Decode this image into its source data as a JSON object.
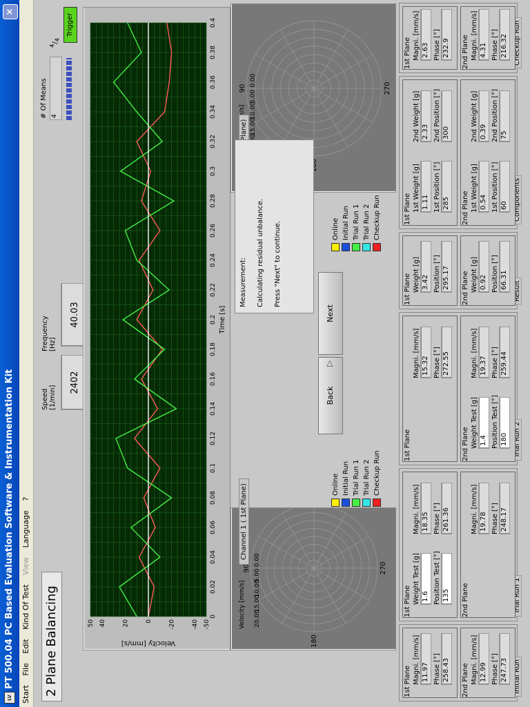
{
  "window": {
    "title": "PT 500.04 PC Based Evaluation Software & Instrumentation Kit",
    "close": "×",
    "icon": "app-icon"
  },
  "menu": [
    "Start",
    "File",
    "Edit",
    "Kind Of Test",
    "View",
    "Language",
    "?"
  ],
  "app_title": "2 Plane Balancing",
  "speed": {
    "label": "Speed\n[1/min]",
    "value": "2402"
  },
  "frequency": {
    "label": "Frequency\n[Hz]",
    "value": "40.03"
  },
  "means": {
    "label": "# Of Means",
    "value": "4",
    "fraction_num": "4",
    "fraction_den": "4",
    "trigger": "Trigger"
  },
  "chart_data": {
    "type": "line",
    "xlabel": "Time [s]",
    "ylabel": "Velocity [mm/s]",
    "xlim": [
      0,
      0.4
    ],
    "ylim": [
      -50,
      50
    ],
    "xticks": [
      "0",
      "0.02",
      "0.04",
      "0.06",
      "0.08",
      "0.1",
      "0.12",
      "0.14",
      "0.16",
      "0.18",
      "0.2",
      "0.22",
      "0.24",
      "0.26",
      "0.28",
      "0.3",
      "0.32",
      "0.34",
      "0.36",
      "0.38",
      "0.4"
    ],
    "yticks": [
      "50",
      "40",
      "20",
      "0",
      "-20",
      "-40",
      "-50"
    ],
    "grid": true,
    "series": [
      {
        "color": "#ff5a5a",
        "x": [
          0,
          0.02,
          0.04,
          0.06,
          0.08,
          0.1,
          0.12,
          0.14,
          0.16,
          0.18,
          0.2,
          0.22,
          0.24,
          0.26,
          0.28,
          0.3,
          0.32,
          0.34,
          0.36,
          0.38,
          0.4
        ],
        "y": [
          0,
          -5,
          8,
          -6,
          4,
          -10,
          12,
          -8,
          6,
          -12,
          10,
          -4,
          8,
          -10,
          6,
          -2,
          10,
          -14,
          -18,
          -20,
          -16
        ]
      },
      {
        "color": "#44ee44",
        "x": [
          0,
          0.02,
          0.04,
          0.06,
          0.08,
          0.1,
          0.12,
          0.14,
          0.16,
          0.18,
          0.2,
          0.22,
          0.24,
          0.26,
          0.28,
          0.3,
          0.32,
          0.34,
          0.36,
          0.38,
          0.4
        ],
        "y": [
          10,
          25,
          -10,
          15,
          -20,
          18,
          28,
          -24,
          12,
          -14,
          22,
          -18,
          10,
          20,
          -22,
          24,
          -12,
          10,
          30,
          6,
          18
        ]
      },
      {
        "color": "#ffffff",
        "x": [
          0,
          0.4
        ],
        "y": [
          0,
          0
        ]
      }
    ]
  },
  "channel1": {
    "tab": "Channel 1 ( 1st Plane)",
    "axis_label": "Velocity [mm/s]",
    "r_ticks": [
      "20.00",
      "15.00",
      "10.00",
      "5.00",
      "0.00"
    ],
    "angles": [
      "90",
      "180",
      "270"
    ]
  },
  "channel2": {
    "tab": "Channel 2 ( 2nd Plane)",
    "axis_label": "Velocity [mm/s]",
    "r_ticks": [
      "20.00",
      "15.00",
      "10.00",
      "5.00",
      "0.00"
    ],
    "angles": [
      "90",
      "180",
      "270"
    ]
  },
  "legend": [
    {
      "label": "Online",
      "color": "#ffee00"
    },
    {
      "label": "Initial Run",
      "color": "#1a4fdc"
    },
    {
      "label": "Trial Run 1",
      "color": "#44ee44"
    },
    {
      "label": "Trial Run 2",
      "color": "#33e6e6"
    },
    {
      "label": "Checkup Run",
      "color": "#ee2020"
    }
  ],
  "message": {
    "line1": "Measurement:",
    "line2": "Calculating residual unbalance.",
    "line3": "Press \"Next\" to continue."
  },
  "buttons": {
    "back": "Back",
    "next": "Next"
  },
  "groups": {
    "initial_run": {
      "title": "Initial Run",
      "p1": {
        "label": "1st Plane",
        "magni": "11.97",
        "phase": "258.43"
      },
      "p2": {
        "label": "2nd Plane",
        "magni": "12.99",
        "phase": "247.73"
      }
    },
    "trial_run1": {
      "title": "Trial Run 1",
      "p1": {
        "label": "1st Plane",
        "weight": "1.6",
        "position": "135",
        "magni": "18.35",
        "phase": "261.36"
      },
      "p2": {
        "label": "2nd Plane",
        "magni": "19.78",
        "phase": "248.17"
      }
    },
    "trial_run2": {
      "title": "Trial Run 2",
      "p1": {
        "label": "1st Plane",
        "magni": "15.32",
        "phase": "272.55"
      },
      "p2": {
        "label": "2nd Plane",
        "weight": "1.4",
        "position": "180",
        "magni": "19.37",
        "phase": "259.44"
      }
    },
    "result": {
      "title": "Result",
      "p1": {
        "label": "1st Plane",
        "weight": "3.42",
        "position": "295.17"
      },
      "p2": {
        "label": "2nd Plane",
        "weight": "0.92",
        "position": "66.31"
      }
    },
    "components": {
      "title": "Components",
      "p1": {
        "label": "1st Plane",
        "w1": "1.11",
        "pos1": "285",
        "w2": "2.33",
        "pos2": "300"
      },
      "p2": {
        "label": "2nd Plane",
        "w1": "0.54",
        "pos1": "60",
        "w2": "0.39",
        "pos2": "75"
      }
    },
    "checkup_run": {
      "title": "Checkup Run",
      "p1": {
        "label": "1st Plane",
        "magni": "2.63",
        "phase": "232.9"
      },
      "p2": {
        "label": "2nd Plane",
        "magni": "4.31",
        "phase": "216.32"
      }
    }
  },
  "labels": {
    "magni": "Magni. [mm/s]",
    "phase": "Phase [°]",
    "weight": "Weight [g]",
    "position": "Position [°]",
    "weight_test": "Weight Test [g]",
    "position_test": "Position Test [°]",
    "w1": "1st Weight [g]",
    "p1": "1st Position [°]",
    "w2": "2nd Weight [g]",
    "p2": "2nd Position [°]"
  }
}
